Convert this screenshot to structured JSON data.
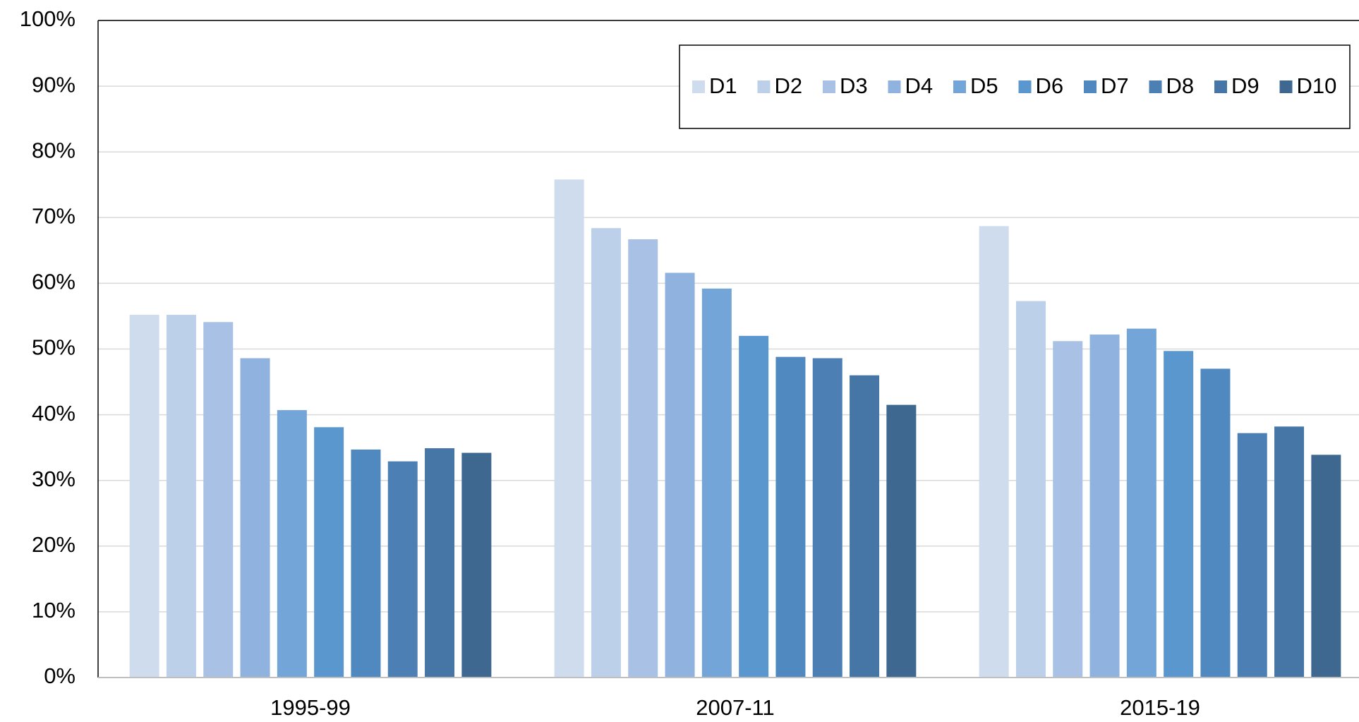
{
  "chart_data": {
    "type": "bar",
    "categories": [
      "1995-99",
      "2007-11",
      "2015-19"
    ],
    "series": [
      {
        "name": "D1",
        "color": "#cfdcee",
        "values": [
          55.2,
          75.8,
          68.7
        ]
      },
      {
        "name": "D2",
        "color": "#bdd0ea",
        "values": [
          55.2,
          68.4,
          57.3
        ]
      },
      {
        "name": "D3",
        "color": "#a8c1e4",
        "values": [
          54.1,
          66.7,
          51.2
        ]
      },
      {
        "name": "D4",
        "color": "#8fb3de",
        "values": [
          48.6,
          61.6,
          52.2
        ]
      },
      {
        "name": "D5",
        "color": "#74a5d9",
        "values": [
          40.7,
          59.2,
          53.1
        ]
      },
      {
        "name": "D6",
        "color": "#5b97cf",
        "values": [
          38.1,
          52.0,
          49.7
        ]
      },
      {
        "name": "D7",
        "color": "#5089c0",
        "values": [
          34.7,
          48.8,
          47.0
        ]
      },
      {
        "name": "D8",
        "color": "#4c80b4",
        "values": [
          32.9,
          48.6,
          37.2
        ]
      },
      {
        "name": "D9",
        "color": "#4576a6",
        "values": [
          34.9,
          46.0,
          38.2
        ]
      },
      {
        "name": "D10",
        "color": "#3e6890",
        "values": [
          34.2,
          41.5,
          33.9
        ]
      }
    ],
    "ylim": [
      0,
      100
    ],
    "yticks": [
      {
        "value": 0,
        "label": "0%"
      },
      {
        "value": 10,
        "label": "10%"
      },
      {
        "value": 20,
        "label": "20%"
      },
      {
        "value": 30,
        "label": "30%"
      },
      {
        "value": 40,
        "label": "40%"
      },
      {
        "value": 50,
        "label": "50%"
      },
      {
        "value": 60,
        "label": "60%"
      },
      {
        "value": 70,
        "label": "70%"
      },
      {
        "value": 80,
        "label": "80%"
      },
      {
        "value": 90,
        "label": "90%"
      },
      {
        "value": 100,
        "label": "100%"
      }
    ],
    "grid": true,
    "legend": "upper right"
  }
}
